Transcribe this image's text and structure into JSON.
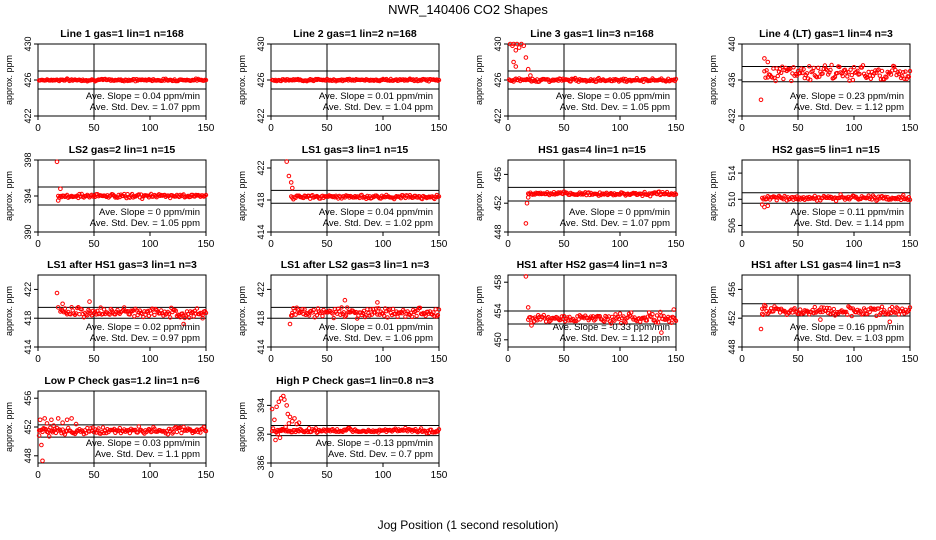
{
  "title": "NWR_140406  CO2 Shapes",
  "x_axis_label": "Jog Position (1 second resolution)",
  "chart_data": [
    {
      "type": "scatter",
      "title": "Line 1 gas=1 lin=1 n=168",
      "ylabel": "approx. ppm",
      "xlim": [
        0,
        150
      ],
      "ylim": [
        422,
        430
      ],
      "yticks": [
        422,
        426,
        430
      ],
      "xticks": [
        0,
        50,
        100,
        150
      ],
      "vline": 50,
      "hlines": [
        427,
        425
      ],
      "level": 426,
      "noise": 0.1,
      "start": 1,
      "end": 150,
      "spikes": [],
      "slope": "Ave. Slope = 0.04  ppm/min",
      "std": "Ave. Std. Dev. = 1.07  ppm"
    },
    {
      "type": "scatter",
      "title": "Line 2 gas=1 lin=2 n=168",
      "ylabel": "approx. ppm",
      "xlim": [
        0,
        150
      ],
      "ylim": [
        422,
        430
      ],
      "yticks": [
        422,
        426,
        430
      ],
      "xticks": [
        0,
        50,
        100,
        150
      ],
      "vline": 50,
      "hlines": [
        427,
        425
      ],
      "level": 426,
      "noise": 0.1,
      "start": 1,
      "end": 150,
      "spikes": [],
      "slope": "Ave. Slope = 0.01  ppm/min",
      "std": "Ave. Std. Dev. = 1.04  ppm"
    },
    {
      "type": "scatter",
      "title": "Line 3 gas=1 lin=3 n=168",
      "ylabel": "approx. ppm",
      "xlim": [
        0,
        150
      ],
      "ylim": [
        422,
        430
      ],
      "yticks": [
        422,
        426,
        430
      ],
      "xticks": [
        0,
        50,
        100,
        150
      ],
      "vline": 50,
      "hlines": [
        427,
        425
      ],
      "level": 426,
      "noise": 0.15,
      "start": 1,
      "end": 150,
      "spikes": [
        [
          2,
          430.5
        ],
        [
          4,
          429.8
        ],
        [
          5,
          431
        ],
        [
          7,
          429.3
        ],
        [
          8,
          430.2
        ],
        [
          10,
          429.6
        ],
        [
          12,
          430.1
        ],
        [
          14,
          429.8
        ],
        [
          16,
          428.5
        ],
        [
          18,
          427.2
        ],
        [
          20,
          426.5
        ],
        [
          5,
          428
        ],
        [
          7,
          427.5
        ]
      ],
      "slope": "Ave. Slope = 0.05  ppm/min",
      "std": "Ave. Std. Dev. = 1.05  ppm"
    },
    {
      "type": "scatter",
      "title": "Line 4 (LT) gas=1 lin=4 n=3",
      "ylabel": "approx. ppm",
      "xlim": [
        0,
        150
      ],
      "ylim": [
        432,
        440
      ],
      "yticks": [
        432,
        436,
        440
      ],
      "xticks": [
        0,
        50,
        100,
        150
      ],
      "vline": 50,
      "hlines": [
        437.5,
        435.8
      ],
      "level": 436.8,
      "noise": 0.7,
      "start": 20,
      "end": 150,
      "spikes": [
        [
          17,
          433.8
        ],
        [
          20,
          438.4
        ],
        [
          23,
          438
        ]
      ],
      "slope": "Ave. Slope = 0.23  ppm/min",
      "std": "Ave. Std. Dev. = 1.12  ppm"
    },
    {
      "type": "scatter",
      "title": "LS2 gas=2 lin=1 n=15",
      "ylabel": "approx. ppm",
      "xlim": [
        0,
        150
      ],
      "ylim": [
        390,
        398
      ],
      "yticks": [
        390,
        394,
        398
      ],
      "xticks": [
        0,
        50,
        100,
        150
      ],
      "vline": 50,
      "hlines": [
        395,
        393
      ],
      "level": 394,
      "noise": 0.2,
      "start": 18,
      "end": 150,
      "spikes": [
        [
          17,
          397.8
        ],
        [
          18,
          393.5
        ],
        [
          20,
          394.8
        ]
      ],
      "slope": "Ave. Slope = 0  ppm/min",
      "std": "Ave. Std. Dev. = 1.05  ppm"
    },
    {
      "type": "scatter",
      "title": "LS1 gas=3 lin=1 n=15",
      "ylabel": "approx. ppm",
      "xlim": [
        0,
        150
      ],
      "ylim": [
        414,
        423
      ],
      "yticks": [
        414,
        418,
        422
      ],
      "xticks": [
        0,
        50,
        100,
        150
      ],
      "vline": 50,
      "hlines": [
        419.2,
        417.6
      ],
      "level": 418.4,
      "noise": 0.2,
      "start": 18,
      "end": 150,
      "spikes": [
        [
          14,
          422.8
        ],
        [
          16,
          421
        ],
        [
          18,
          420.2
        ],
        [
          19,
          419.5
        ]
      ],
      "slope": "Ave. Slope = 0.04  ppm/min",
      "std": "Ave. Std. Dev. = 1.02  ppm"
    },
    {
      "type": "scatter",
      "title": "HS1 gas=4 lin=1 n=15",
      "ylabel": "approx. ppm",
      "xlim": [
        0,
        150
      ],
      "ylim": [
        448,
        458
      ],
      "yticks": [
        448,
        452,
        456
      ],
      "xticks": [
        0,
        50,
        100,
        150
      ],
      "vline": 50,
      "hlines": [
        454.2,
        452.3
      ],
      "level": 453.3,
      "noise": 0.2,
      "start": 18,
      "end": 150,
      "spikes": [
        [
          16,
          449.2
        ],
        [
          17,
          452
        ],
        [
          18,
          452.8
        ]
      ],
      "slope": "Ave. Slope = 0  ppm/min",
      "std": "Ave. Std. Dev. = 1.07  ppm"
    },
    {
      "type": "scatter",
      "title": "HS2 gas=5 lin=1 n=15",
      "ylabel": "approx. ppm",
      "xlim": [
        0,
        150
      ],
      "ylim": [
        505,
        516
      ],
      "yticks": [
        506,
        510,
        514
      ],
      "xticks": [
        0,
        50,
        100,
        150
      ],
      "vline": 50,
      "hlines": [
        511,
        509.4
      ],
      "level": 510.2,
      "noise": 0.3,
      "start": 18,
      "end": 150,
      "spikes": [
        [
          18,
          509.2
        ],
        [
          20,
          508.8
        ],
        [
          23,
          509
        ]
      ],
      "slope": "Ave. Slope = 0.11  ppm/min",
      "std": "Ave. Std. Dev. = 1.14  ppm"
    },
    {
      "type": "scatter",
      "title": "LS1 after HS1 gas=3 lin=1 n=3",
      "ylabel": "approx. ppm",
      "xlim": [
        0,
        150
      ],
      "ylim": [
        414,
        424
      ],
      "yticks": [
        414,
        418,
        422
      ],
      "xticks": [
        0,
        50,
        100,
        150
      ],
      "vline": 50,
      "hlines": [
        419.5,
        418
      ],
      "level": 418.8,
      "noise": 0.55,
      "start": 20,
      "end": 150,
      "spikes": [
        [
          17,
          421.5
        ],
        [
          18,
          419.5
        ],
        [
          22,
          420
        ],
        [
          46,
          420.3
        ],
        [
          130,
          417.2
        ],
        [
          147,
          418
        ]
      ],
      "slope": "Ave. Slope = 0.02  ppm/min",
      "std": "Ave. Std. Dev. = 0.97  ppm"
    },
    {
      "type": "scatter",
      "title": "LS1 after LS2 gas=3 lin=1 n=3",
      "ylabel": "approx. ppm",
      "xlim": [
        0,
        150
      ],
      "ylim": [
        414,
        424
      ],
      "yticks": [
        414,
        418,
        422
      ],
      "xticks": [
        0,
        50,
        100,
        150
      ],
      "vline": 50,
      "hlines": [
        419.5,
        418
      ],
      "level": 418.8,
      "noise": 0.6,
      "start": 18,
      "end": 150,
      "spikes": [
        [
          17,
          417.2
        ],
        [
          19,
          418.4
        ],
        [
          66,
          420.5
        ],
        [
          95,
          420.2
        ]
      ],
      "slope": "Ave. Slope = 0.01  ppm/min",
      "std": "Ave. Std. Dev. = 1.06  ppm"
    },
    {
      "type": "scatter",
      "title": "HS1 after HS2 gas=4 lin=1 n=3",
      "ylabel": "approx. ppm",
      "xlim": [
        0,
        150
      ],
      "ylim": [
        449,
        459
      ],
      "yticks": [
        450,
        454,
        458
      ],
      "xticks": [
        0,
        50,
        100,
        150
      ],
      "vline": 50,
      "hlines": [
        454,
        452.2
      ],
      "level": 453,
      "noise": 0.55,
      "start": 18,
      "end": 150,
      "spikes": [
        [
          16,
          458.8
        ],
        [
          18,
          454.5
        ],
        [
          21,
          452
        ],
        [
          137,
          451
        ],
        [
          148,
          454.2
        ]
      ],
      "slope": "Ave. Slope = -0.33  ppm/min",
      "std": "Ave. Std. Dev. = 1.12  ppm"
    },
    {
      "type": "scatter",
      "title": "HS1 after LS1 gas=4 lin=1 n=3",
      "ylabel": "approx. ppm",
      "xlim": [
        0,
        150
      ],
      "ylim": [
        448,
        458
      ],
      "yticks": [
        448,
        452,
        456
      ],
      "xticks": [
        0,
        50,
        100,
        150
      ],
      "vline": 50,
      "hlines": [
        454,
        452.3
      ],
      "level": 453,
      "noise": 0.5,
      "start": 18,
      "end": 150,
      "spikes": [
        [
          17,
          450.5
        ],
        [
          18,
          452.6
        ],
        [
          20,
          453.8
        ],
        [
          70,
          451.8
        ],
        [
          132,
          451.5
        ]
      ],
      "slope": "Ave. Slope = 0.16  ppm/min",
      "std": "Ave. Std. Dev. = 1.03  ppm"
    },
    {
      "type": "scatter",
      "title": "Low P Check gas=1.2 lin=1 n=6",
      "ylabel": "approx. ppm",
      "xlim": [
        0,
        150
      ],
      "ylim": [
        447,
        457
      ],
      "yticks": [
        448,
        452,
        456
      ],
      "xticks": [
        0,
        50,
        100,
        150
      ],
      "vline": 50,
      "hlines": [
        452.3,
        450.6
      ],
      "level": 451.5,
      "noise": 0.4,
      "start": 1,
      "end": 150,
      "spikes": [
        [
          1,
          450.8
        ],
        [
          2,
          453
        ],
        [
          3,
          449.5
        ],
        [
          4,
          447.3
        ],
        [
          5,
          451.8
        ],
        [
          6,
          453.2
        ],
        [
          8,
          452.5
        ],
        [
          10,
          450.7
        ],
        [
          12,
          453
        ],
        [
          14,
          452.2
        ],
        [
          18,
          453.2
        ],
        [
          22,
          452.6
        ],
        [
          26,
          453
        ],
        [
          30,
          453.2
        ],
        [
          34,
          452.4
        ]
      ],
      "slope": "Ave. Slope = 0.03  ppm/min",
      "std": "Ave. Std. Dev. = 1.1  ppm"
    },
    {
      "type": "scatter",
      "title": "High P Check gas=1 lin=0.8 n=3",
      "ylabel": "approx. ppm",
      "xlim": [
        0,
        150
      ],
      "ylim": [
        386,
        396
      ],
      "yticks": [
        386,
        390,
        394
      ],
      "xticks": [
        0,
        50,
        100,
        150
      ],
      "vline": 50,
      "hlines": [
        391.2,
        389.8
      ],
      "level": 390.5,
      "noise": 0.25,
      "start": 1,
      "end": 150,
      "spikes": [
        [
          1,
          393.5
        ],
        [
          3,
          392
        ],
        [
          5,
          393.8
        ],
        [
          7,
          394.5
        ],
        [
          9,
          395
        ],
        [
          11,
          395.3
        ],
        [
          12,
          394.8
        ],
        [
          14,
          394
        ],
        [
          15,
          392.8
        ],
        [
          17,
          392.4
        ],
        [
          19,
          391.8
        ],
        [
          21,
          392.2
        ],
        [
          23,
          391.4
        ],
        [
          25,
          391.6
        ],
        [
          4,
          389.2
        ],
        [
          6,
          390
        ],
        [
          8,
          389.5
        ],
        [
          10,
          390.6
        ],
        [
          13,
          391
        ],
        [
          16,
          391.5
        ]
      ],
      "slope": "Ave. Slope = -0.13  ppm/min",
      "std": "Ave. Std. Dev. = 0.7  ppm"
    }
  ]
}
